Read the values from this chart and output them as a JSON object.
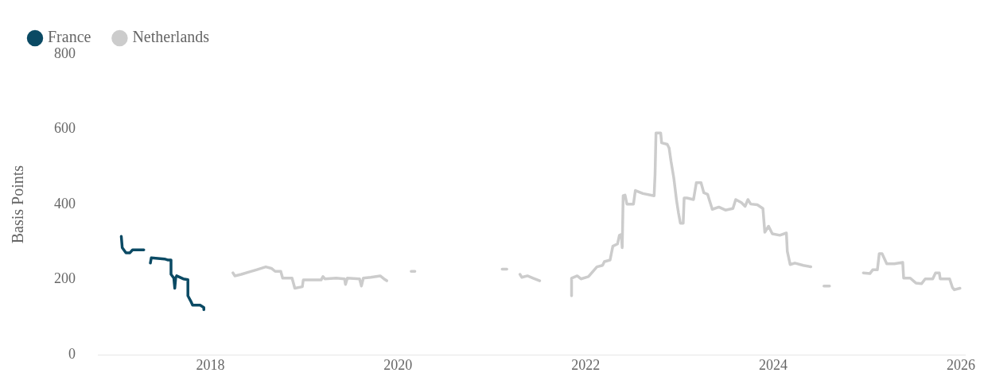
{
  "chart_data": {
    "type": "line",
    "ylabel": "Basis Points",
    "xlim": [
      2016.8,
      2026.05
    ],
    "xticks": [
      2018,
      2020,
      2022,
      2024,
      2026
    ],
    "ylim": [
      0,
      800
    ],
    "yticks": [
      0,
      200,
      400,
      600,
      800
    ],
    "grid": false,
    "legend": "top left",
    "marker": "none",
    "line_style": "solid",
    "series": [
      {
        "name": "France",
        "color": "#0b4a64",
        "x": [
          2017.05,
          2017.06,
          2017.1,
          2017.14,
          2017.17,
          2017.29,
          2017.33,
          2017.36,
          2017.37,
          2017.51,
          2017.55,
          2017.58,
          2017.58,
          2017.61,
          2017.62,
          2017.63,
          2017.64,
          2017.71,
          2017.76,
          2017.76,
          2017.79,
          2017.81,
          2017.89,
          2017.93,
          2017.93
        ],
        "values": [
          315,
          285,
          271,
          271,
          279,
          279,
          null,
          244,
          258,
          255,
          252,
          252,
          214,
          204,
          177,
          205,
          210,
          202,
          200,
          157,
          143,
          132,
          132,
          126,
          120
        ]
      },
      {
        "name": "Netherlands",
        "color": "#cccccc",
        "x": [
          2018.24,
          2018.26,
          2018.33,
          2018.41,
          2018.49,
          2018.59,
          2018.65,
          2018.69,
          2018.75,
          2018.77,
          2018.87,
          2018.9,
          2018.98,
          2018.99,
          2019.18,
          2019.2,
          2019.22,
          2019.34,
          2019.43,
          2019.44,
          2019.46,
          2019.59,
          2019.61,
          2019.63,
          2019.71,
          2019.81,
          2019.85,
          2019.88,
          2020.0,
          2020.14,
          2020.18,
          2020.5,
          2021.11,
          2021.16,
          2021.2,
          2021.3,
          2021.32,
          2021.38,
          2021.44,
          2021.51,
          2021.7,
          2021.85,
          2021.85,
          2021.91,
          2021.95,
          2022.03,
          2022.12,
          2022.18,
          2022.2,
          2022.26,
          2022.29,
          2022.34,
          2022.36,
          2022.38,
          2022.39,
          2022.4,
          2022.42,
          2022.44,
          2022.51,
          2022.53,
          2022.61,
          2022.73,
          2022.74,
          2022.75,
          2022.8,
          2022.81,
          2022.87,
          2022.89,
          2022.91,
          2022.94,
          2022.97,
          2022.99,
          2023.01,
          2023.04,
          2023.05,
          2023.08,
          2023.15,
          2023.18,
          2023.23,
          2023.26,
          2023.3,
          2023.32,
          2023.35,
          2023.42,
          2023.49,
          2023.57,
          2023.6,
          2023.66,
          2023.7,
          2023.73,
          2023.76,
          2023.83,
          2023.89,
          2023.91,
          2023.95,
          2023.99,
          2024.07,
          2024.14,
          2024.15,
          2024.18,
          2024.23,
          2024.32,
          2024.4,
          2024.5,
          2024.54,
          2024.6,
          2024.8,
          2024.96,
          2025.03,
          2025.06,
          2025.11,
          2025.13,
          2025.16,
          2025.21,
          2025.29,
          2025.38,
          2025.39,
          2025.46,
          2025.52,
          2025.58,
          2025.62,
          2025.7,
          2025.73,
          2025.77,
          2025.78,
          2025.88,
          2025.91,
          2025.93,
          2025.99
        ],
        "values": [
          218,
          210,
          214,
          220,
          226,
          234,
          230,
          222,
          222,
          204,
          204,
          177,
          181,
          199,
          199,
          208,
          202,
          204,
          202,
          187,
          204,
          202,
          183,
          204,
          206,
          210,
          202,
          197,
          null,
          222,
          222,
          null,
          228,
          228,
          null,
          214,
          206,
          210,
          204,
          197,
          null,
          157,
          204,
          210,
          202,
          208,
          234,
          238,
          248,
          252,
          289,
          295,
          318,
          320,
          285,
          423,
          425,
          401,
          401,
          437,
          429,
          423,
          480,
          590,
          590,
          564,
          560,
          550,
          515,
          470,
          409,
          377,
          350,
          350,
          417,
          417,
          413,
          458,
          458,
          431,
          427,
          411,
          387,
          393,
          385,
          389,
          413,
          405,
          395,
          413,
          401,
          399,
          389,
          326,
          342,
          322,
          318,
          324,
          275,
          240,
          244,
          238,
          234,
          null,
          183,
          183,
          null,
          218,
          216,
          226,
          226,
          269,
          269,
          242,
          242,
          246,
          204,
          204,
          191,
          189,
          202,
          202,
          218,
          218,
          202,
          202,
          179,
          173,
          177
        ]
      }
    ]
  }
}
